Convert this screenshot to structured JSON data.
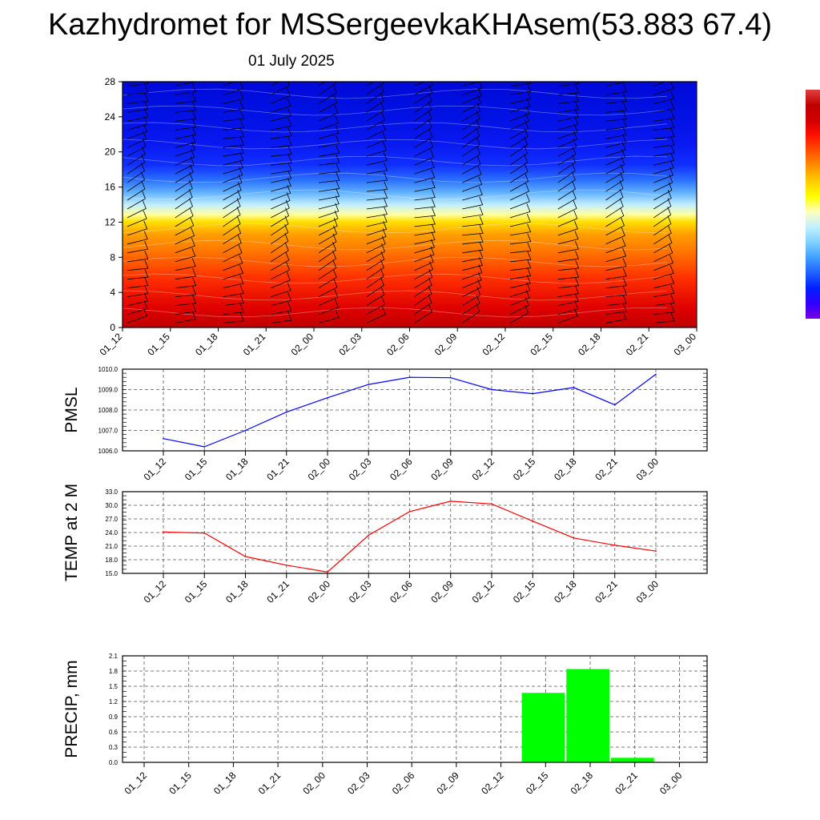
{
  "title": "Kazhydromet for MSSergeevkaKHAsem(53.883 67.4)",
  "subtitle": "01 July 2025",
  "time_labels": [
    "01_12",
    "01_15",
    "01_18",
    "01_21",
    "02_00",
    "02_03",
    "02_06",
    "02_09",
    "02_12",
    "02_15",
    "02_18",
    "02_21",
    "03_00"
  ],
  "colors": {
    "pmsl_line": "#0000ff",
    "temp_line": "#ff0000",
    "precip_bar": "#00ff00",
    "wind_barb": "#000000"
  },
  "chart_data": [
    {
      "type": "heatmap",
      "description_key": "cross-section",
      "y_ticks": [
        "0",
        "4",
        "8",
        "12",
        "16",
        "20",
        "24",
        "28"
      ],
      "ylim": [
        0,
        28
      ],
      "x": [
        "01_12",
        "01_15",
        "01_18",
        "01_21",
        "02_00",
        "02_03",
        "02_06",
        "02_09",
        "02_12",
        "02_15",
        "02_18",
        "02_21",
        "03_00"
      ],
      "colormap": [
        "#c80000",
        "#ff2000",
        "#ff6000",
        "#ff9800",
        "#ffcc00",
        "#ffff80",
        "#a0e0ff",
        "#40a0ff",
        "#2060ff",
        "#1030ff",
        "#0a10e0",
        "#0000d0"
      ],
      "colorbar_colors": [
        "#7a00e0",
        "#3000ff",
        "#0020ff",
        "#2060ff",
        "#40a0ff",
        "#80d0ff",
        "#c0f0ff",
        "#ffffc0",
        "#ffff00",
        "#ffcc00",
        "#ff9000",
        "#ff5000",
        "#ff1000",
        "#d00000",
        "#c00000",
        "#e04040"
      ],
      "wind_barbs": "present"
    },
    {
      "type": "line",
      "ylabel": "PMSL",
      "x": [
        "01_12",
        "01_15",
        "01_18",
        "01_21",
        "02_00",
        "02_03",
        "02_06",
        "02_09",
        "02_12",
        "02_15",
        "02_18",
        "02_21",
        "03_00"
      ],
      "values": [
        1006.6,
        1006.2,
        1007.0,
        1007.9,
        1008.6,
        1009.25,
        1009.6,
        1009.58,
        1009.0,
        1008.8,
        1009.1,
        1008.25,
        1009.75
      ],
      "ylim": [
        1006.0,
        1010.0
      ],
      "y_ticks": [
        "1006.0",
        "1007.0",
        "1008.0",
        "1009.0",
        "1010.0"
      ],
      "grid": true
    },
    {
      "type": "line",
      "ylabel": "TEMP at 2 M",
      "x": [
        "01_12",
        "01_15",
        "01_18",
        "01_21",
        "02_00",
        "02_03",
        "02_06",
        "02_09",
        "02_12",
        "02_15",
        "02_18",
        "02_21",
        "03_00"
      ],
      "values": [
        24.1,
        23.9,
        18.7,
        16.8,
        15.3,
        23.4,
        28.6,
        30.9,
        30.3,
        26.5,
        22.8,
        21.2,
        19.9
      ],
      "ylim": [
        15.0,
        33.0
      ],
      "y_ticks": [
        "15.0",
        "18.0",
        "21.0",
        "24.0",
        "27.0",
        "30.0",
        "33.0"
      ],
      "grid": true
    },
    {
      "type": "bar",
      "ylabel": "PRECIP, mm",
      "categories": [
        "01_12",
        "01_15",
        "01_18",
        "01_21",
        "02_00",
        "02_03",
        "02_06",
        "02_09",
        "02_12",
        "02_15",
        "02_18",
        "02_21",
        "03_00"
      ],
      "values": [
        0,
        0,
        0,
        0,
        0,
        0,
        0,
        0,
        0,
        1.37,
        1.84,
        0.09,
        0
      ],
      "ylim": [
        0.0,
        2.1
      ],
      "y_ticks": [
        "0.0",
        "0.3",
        "0.6",
        "0.9",
        "1.2",
        "1.5",
        "1.8",
        "2.1"
      ],
      "grid": true
    }
  ]
}
